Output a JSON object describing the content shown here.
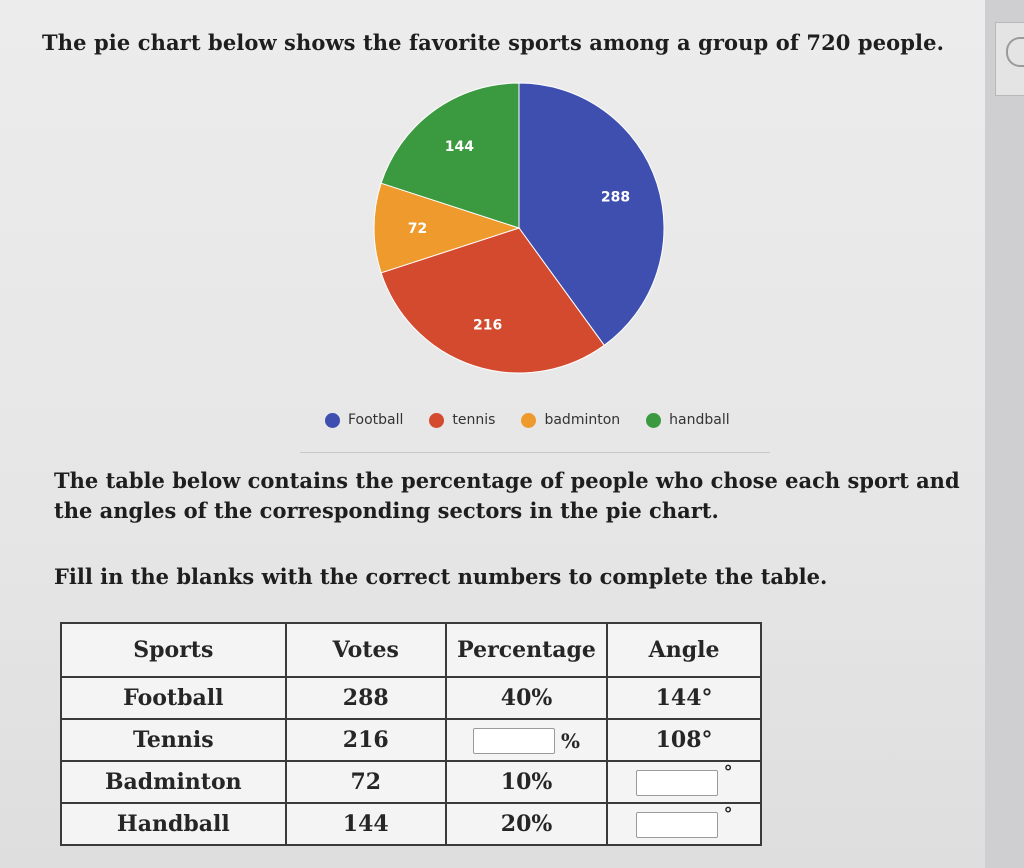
{
  "question": {
    "heading": "The pie chart below shows the favorite sports among a group of 720 people.",
    "paragraph1": "The table below contains the percentage of people who chose each sport and the angles of the corresponding sectors in the pie chart.",
    "paragraph2": "Fill in the blanks with the correct numbers to complete the table."
  },
  "chart_data": {
    "type": "pie",
    "categories": [
      "Football",
      "tennis",
      "badminton",
      "handball"
    ],
    "values": [
      288,
      216,
      72,
      144
    ],
    "labels": [
      "288",
      "216",
      "72",
      "144"
    ],
    "colors": [
      "#3e4fb0",
      "#d44a2e",
      "#ee9a2c",
      "#3b9a40"
    ],
    "legend_position": "bottom"
  },
  "legend": {
    "items": [
      {
        "label": "Football",
        "color": "#3e4fb0"
      },
      {
        "label": "tennis",
        "color": "#d44a2e"
      },
      {
        "label": "badminton",
        "color": "#ee9a2c"
      },
      {
        "label": "handball",
        "color": "#3b9a40"
      }
    ]
  },
  "table": {
    "headers": [
      "Sports",
      "Votes",
      "Percentage",
      "Angle"
    ],
    "rows": [
      {
        "sport": "Football",
        "votes": "288",
        "percentage": "40%",
        "angle": "144°"
      },
      {
        "sport": "Tennis",
        "votes": "216",
        "percentage": "",
        "percentage_unit": "%",
        "angle": "108°"
      },
      {
        "sport": "Badminton",
        "votes": "72",
        "percentage": "10%",
        "angle": "",
        "angle_unit": "°"
      },
      {
        "sport": "Handball",
        "votes": "144",
        "percentage": "20%",
        "angle": "",
        "angle_unit": "°"
      }
    ]
  }
}
